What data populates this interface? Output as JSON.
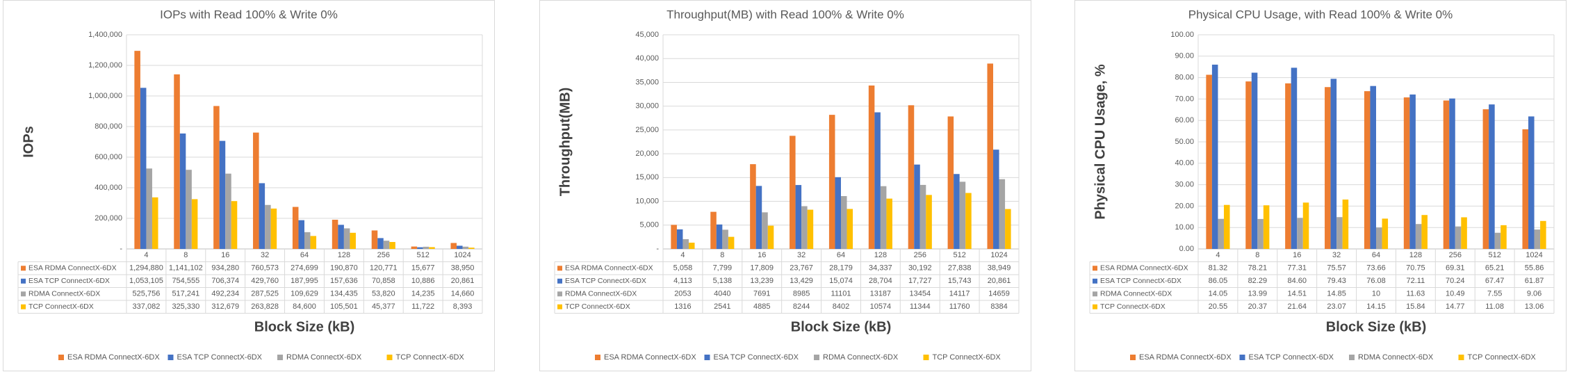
{
  "chart_data": [
    {
      "type": "bar",
      "title": "IOPs with Read 100% & Write 0%",
      "x_label": "Block Size (kB)",
      "y_label": "IOPs",
      "categories": [
        "4",
        "8",
        "16",
        "32",
        "64",
        "128",
        "256",
        "512",
        "1024"
      ],
      "ylim": [
        0,
        1400000
      ],
      "yticks": [
        {
          "value": 0,
          "label": "-"
        },
        {
          "value": 200000,
          "label": "200,000"
        },
        {
          "value": 400000,
          "label": "400,000"
        },
        {
          "value": 600000,
          "label": "600,000"
        },
        {
          "value": 800000,
          "label": "800,000"
        },
        {
          "value": 1000000,
          "label": "1,000,000"
        },
        {
          "value": 1200000,
          "label": "1,200,000"
        },
        {
          "value": 1400000,
          "label": "1,400,000"
        }
      ],
      "grid": true,
      "legend": "bottom",
      "series": [
        {
          "name": "ESA RDMA ConnectX-6DX",
          "color": "#ED7D31",
          "values": [
            1294880,
            1141102,
            934280,
            760573,
            274699,
            190870,
            120771,
            15677,
            38950
          ],
          "value_labels": [
            "1,294,880",
            "1,141,102",
            "934,280",
            "760,573",
            "274,699",
            "190,870",
            "120,771",
            "15,677",
            "38,950"
          ]
        },
        {
          "name": "ESA TCP ConnectX-6DX",
          "color": "#4472C4",
          "values": [
            1053105,
            754555,
            706374,
            429760,
            187995,
            157636,
            70858,
            10886,
            20861
          ],
          "value_labels": [
            "1,053,105",
            "754,555",
            "706,374",
            "429,760",
            "187,995",
            "157,636",
            "70,858",
            "10,886",
            "20,861"
          ]
        },
        {
          "name": "RDMA ConnectX-6DX",
          "color": "#A5A5A5",
          "values": [
            525756,
            517241,
            492234,
            287525,
            109629,
            134435,
            53820,
            14235,
            14660
          ],
          "value_labels": [
            "525,756",
            "517,241",
            "492,234",
            "287,525",
            "109,629",
            "134,435",
            "53,820",
            "14,235",
            "14,660"
          ]
        },
        {
          "name": "TCP ConnectX-6DX",
          "color": "#FFC000",
          "values": [
            337082,
            325330,
            312679,
            263828,
            84600,
            105501,
            45377,
            11722,
            8393
          ],
          "value_labels": [
            "337,082",
            "325,330",
            "312,679",
            "263,828",
            "84,600",
            "105,501",
            "45,377",
            "11,722",
            "8,393"
          ]
        }
      ]
    },
    {
      "type": "bar",
      "title": "Throughput(MB) with Read 100% & Write 0%",
      "x_label": "Block Size (kB)",
      "y_label": "Throughput(MB)",
      "categories": [
        "4",
        "8",
        "16",
        "32",
        "64",
        "128",
        "256",
        "512",
        "1024"
      ],
      "ylim": [
        0,
        45000
      ],
      "yticks": [
        {
          "value": 0,
          "label": "-"
        },
        {
          "value": 5000,
          "label": "5,000"
        },
        {
          "value": 10000,
          "label": "10,000"
        },
        {
          "value": 15000,
          "label": "15,000"
        },
        {
          "value": 20000,
          "label": "20,000"
        },
        {
          "value": 25000,
          "label": "25,000"
        },
        {
          "value": 30000,
          "label": "30,000"
        },
        {
          "value": 35000,
          "label": "35,000"
        },
        {
          "value": 40000,
          "label": "40,000"
        },
        {
          "value": 45000,
          "label": "45,000"
        }
      ],
      "grid": true,
      "legend": "bottom",
      "series": [
        {
          "name": "ESA RDMA ConnectX-6DX",
          "color": "#ED7D31",
          "values": [
            5058,
            7799,
            17809,
            23767,
            28179,
            34337,
            30192,
            27838,
            38949
          ],
          "value_labels": [
            "5,058",
            "7,799",
            "17,809",
            "23,767",
            "28,179",
            "34,337",
            "30,192",
            "27,838",
            "38,949"
          ]
        },
        {
          "name": "ESA TCP ConnectX-6DX",
          "color": "#4472C4",
          "values": [
            4113,
            5138,
            13239,
            13429,
            15074,
            28704,
            17727,
            15743,
            20861
          ],
          "value_labels": [
            "4,113",
            "5,138",
            "13,239",
            "13,429",
            "15,074",
            "28,704",
            "17,727",
            "15,743",
            "20,861"
          ]
        },
        {
          "name": "RDMA ConnectX-6DX",
          "color": "#A5A5A5",
          "values": [
            2053,
            4040,
            7691,
            8985,
            11101,
            13187,
            13454,
            14117,
            14659
          ]
        },
        {
          "name": "TCP ConnectX-6DX",
          "color": "#FFC000",
          "values": [
            1316,
            2541,
            4885,
            8244,
            8402,
            10574,
            11344,
            11760,
            8384
          ]
        }
      ]
    },
    {
      "type": "bar",
      "title": "Physical CPU Usage, with Read 100% & Write 0%",
      "x_label": "Block Size (kB)",
      "y_label": "Physical CPU Usage, %",
      "categories": [
        "4",
        "8",
        "16",
        "32",
        "64",
        "128",
        "256",
        "512",
        "1024"
      ],
      "ylim": [
        0,
        100
      ],
      "yticks": [
        {
          "value": 0,
          "label": "0.00"
        },
        {
          "value": 10,
          "label": "10.00"
        },
        {
          "value": 20,
          "label": "20.00"
        },
        {
          "value": 30,
          "label": "30.00"
        },
        {
          "value": 40,
          "label": "40.00"
        },
        {
          "value": 50,
          "label": "50.00"
        },
        {
          "value": 60,
          "label": "60.00"
        },
        {
          "value": 70,
          "label": "70.00"
        },
        {
          "value": 80,
          "label": "80.00"
        },
        {
          "value": 90,
          "label": "90.00"
        },
        {
          "value": 100,
          "label": "100.00"
        }
      ],
      "grid": true,
      "legend": "bottom",
      "series": [
        {
          "name": "ESA RDMA ConnectX-6DX",
          "color": "#ED7D31",
          "values": [
            81.32,
            78.21,
            77.31,
            75.57,
            73.66,
            70.75,
            69.31,
            65.21,
            55.86
          ]
        },
        {
          "name": "ESA TCP ConnectX-6DX",
          "color": "#4472C4",
          "values": [
            86.05,
            82.29,
            84.6,
            79.43,
            76.08,
            72.11,
            70.24,
            67.47,
            61.87
          ],
          "value_labels": [
            "86.05",
            "82.29",
            "84.60",
            "79.43",
            "76.08",
            "72.11",
            "70.24",
            "67.47",
            "61.87"
          ]
        },
        {
          "name": "RDMA ConnectX-6DX",
          "color": "#A5A5A5",
          "values": [
            14.05,
            13.99,
            14.51,
            14.85,
            10,
            11.63,
            10.49,
            7.55,
            9.06
          ]
        },
        {
          "name": "TCP ConnectX-6DX",
          "color": "#FFC000",
          "values": [
            20.55,
            20.37,
            21.64,
            23.07,
            14.15,
            15.84,
            14.77,
            11.08,
            13.06
          ]
        }
      ]
    }
  ]
}
